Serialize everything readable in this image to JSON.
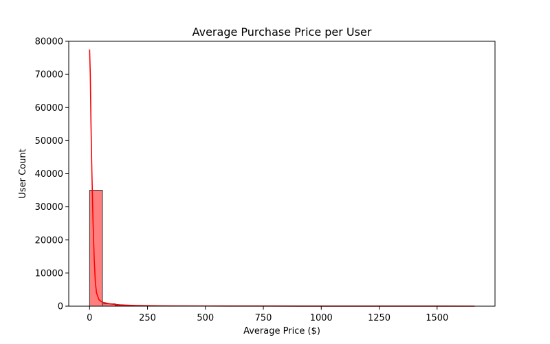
{
  "chart_data": {
    "type": "histogram",
    "title": "Average Purchase Price per User",
    "xlabel": "Average Price ($)",
    "ylabel": "User Count",
    "xlim": [
      -90,
      1750
    ],
    "ylim": [
      0,
      80000
    ],
    "xticks": [
      0,
      250,
      500,
      750,
      1000,
      1250,
      1500
    ],
    "yticks": [
      0,
      10000,
      20000,
      30000,
      40000,
      50000,
      60000,
      70000,
      80000
    ],
    "grid": false,
    "bar_color": "#ff7f7f",
    "bar_edge_color": "#333333",
    "kde_color": "#ff0000",
    "bins": {
      "edges": [
        0,
        55.4,
        110.8,
        166.2,
        221.6,
        277,
        332.4,
        387.8,
        443.2,
        498.6,
        554,
        609.4,
        664.8,
        720.2,
        775.6,
        831,
        886.4,
        941.8,
        997.2,
        1052.6,
        1108,
        1163.4,
        1218.8,
        1274.2,
        1329.6,
        1385,
        1440.4,
        1495.8,
        1551.2,
        1606.6,
        1662
      ],
      "counts": [
        35000,
        700,
        250,
        120,
        70,
        40,
        30,
        20,
        15,
        12,
        10,
        8,
        7,
        6,
        5,
        4,
        4,
        3,
        3,
        3,
        2,
        2,
        2,
        2,
        2,
        2,
        1,
        1,
        1,
        1
      ]
    },
    "kde": {
      "x": [
        0,
        3,
        6,
        10,
        15,
        20,
        25,
        30,
        40,
        50,
        60,
        80,
        100,
        130,
        160,
        200,
        250,
        300,
        400,
        500,
        600,
        750,
        900,
        1100,
        1300,
        1500,
        1662
      ],
      "y": [
        77500,
        70000,
        55000,
        40000,
        25000,
        14000,
        7000,
        4000,
        2000,
        1400,
        1100,
        800,
        600,
        400,
        300,
        200,
        150,
        100,
        70,
        50,
        40,
        30,
        20,
        15,
        10,
        5,
        3
      ]
    }
  }
}
